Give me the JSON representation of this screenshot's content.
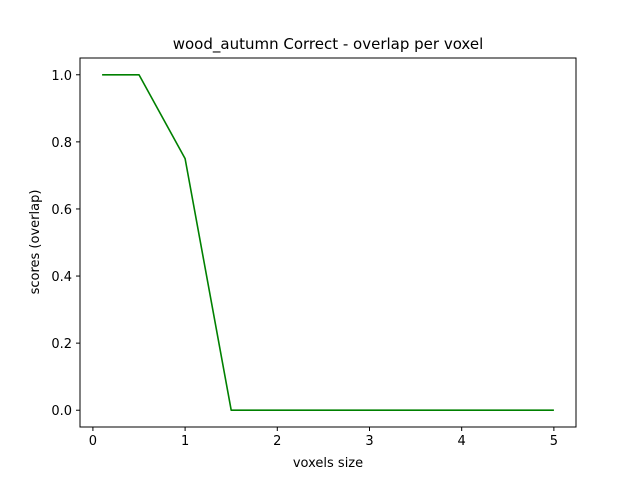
{
  "chart_data": {
    "type": "line",
    "title": "wood_autumn Correct - overlap per voxel",
    "xlabel": "voxels size",
    "ylabel": "scores (overlap)",
    "xlim": [
      -0.14,
      5.24
    ],
    "ylim": [
      -0.05,
      1.05
    ],
    "xticks": [
      0,
      1,
      2,
      3,
      4,
      5
    ],
    "xtick_labels": [
      "0",
      "1",
      "2",
      "3",
      "4",
      "5"
    ],
    "yticks": [
      0.0,
      0.2,
      0.4,
      0.6,
      0.8,
      1.0
    ],
    "ytick_labels": [
      "0.0",
      "0.2",
      "0.4",
      "0.6",
      "0.8",
      "1.0"
    ],
    "grid": false,
    "series": [
      {
        "color": "#008000",
        "x": [
          0.1,
          0.5,
          1.0,
          1.5,
          2.0,
          2.5,
          3.0,
          3.5,
          4.0,
          4.5,
          5.0
        ],
        "y": [
          1.0,
          1.0,
          0.75,
          0.0,
          0.0,
          0.0,
          0.0,
          0.0,
          0.0,
          0.0,
          0.0
        ]
      }
    ]
  }
}
